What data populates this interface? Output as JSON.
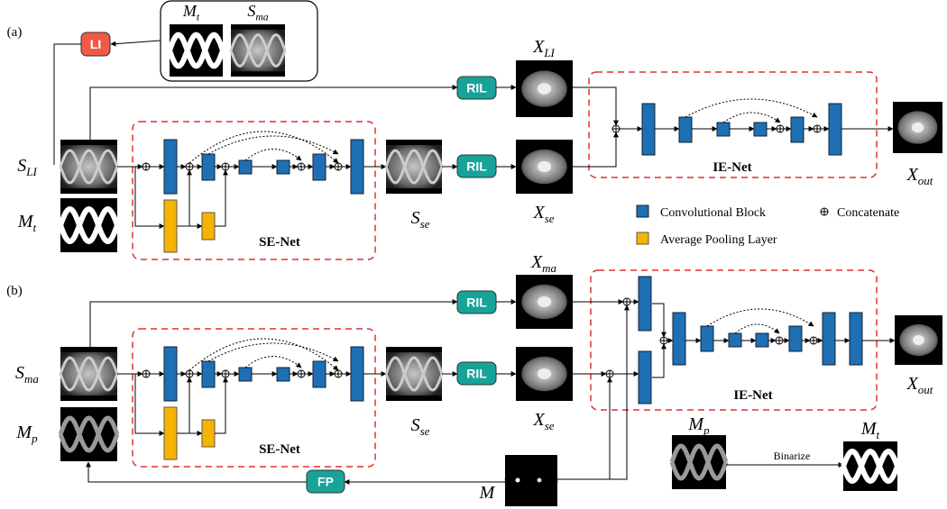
{
  "a": {
    "label": "(a)",
    "li": "LI",
    "inset": {
      "mt": {
        "base": "M",
        "sub": "t"
      },
      "sma": {
        "base": "S",
        "sub": "ma"
      }
    },
    "x_li": {
      "base": "X",
      "sub": "LI"
    },
    "ril_top": "RIL",
    "ril_mid": "RIL",
    "s_li": {
      "base": "S",
      "sub": "LI"
    },
    "m_t": {
      "base": "M",
      "sub": "t"
    },
    "se_net": "SE-Net",
    "s_se": {
      "base": "S",
      "sub": "se"
    },
    "x_se": {
      "base": "X",
      "sub": "se"
    },
    "ie_net": "IE-Net",
    "x_out": {
      "base": "X",
      "sub": "out"
    }
  },
  "legend": {
    "conv": "Convolutional Block",
    "concat": "Concatenate",
    "pool": "Average Pooling Layer"
  },
  "b": {
    "label": "(b)",
    "x_ma": {
      "base": "X",
      "sub": "ma"
    },
    "ril_top": "RIL",
    "ril_mid": "RIL",
    "s_ma": {
      "base": "S",
      "sub": "ma"
    },
    "m_p": {
      "base": "M",
      "sub": "p"
    },
    "se_net": "SE-Net",
    "s_se": {
      "base": "S",
      "sub": "se"
    },
    "x_se": {
      "base": "X",
      "sub": "se"
    },
    "ie_net": "IE-Net",
    "x_out": {
      "base": "X",
      "sub": "out"
    },
    "fp": "FP",
    "m": "M",
    "binarize": {
      "from": {
        "base": "M",
        "sub": "p"
      },
      "label": "Binarize",
      "to": {
        "base": "M",
        "sub": "t"
      }
    }
  }
}
